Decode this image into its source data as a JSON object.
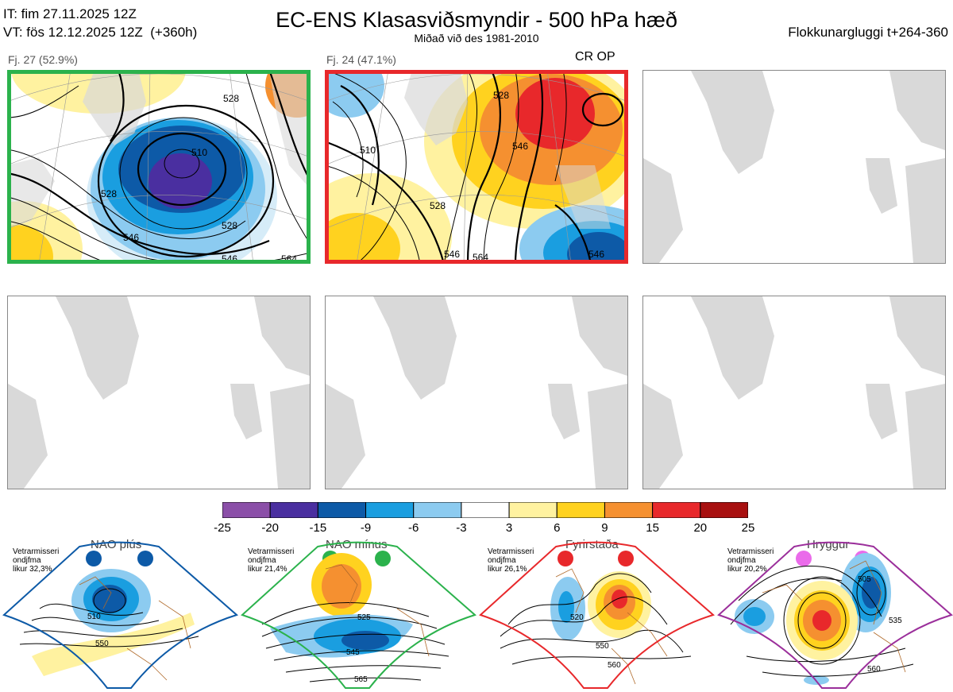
{
  "header": {
    "init_line": "IT: fim 27.11.2025 12Z",
    "valid_line": "VT: fös 12.12.2025 12Z  (+360h)",
    "title": "EC-ENS Klasasviðsmyndir - 500 hPa hæð",
    "subtitle": "Miðað við des 1981-2010",
    "window": "Flokkunargluggi t+264-360"
  },
  "panels": [
    {
      "label": "Fj. 27 (52.9%)",
      "border": "#2bb24c",
      "extra": ""
    },
    {
      "label": "Fj. 24 (47.1%)",
      "border": "#e8282b",
      "extra": "CR OP"
    },
    {
      "label": "",
      "border": "#888888",
      "extra": ""
    },
    {
      "label": "",
      "border": "#888888",
      "extra": ""
    },
    {
      "label": "",
      "border": "#888888",
      "extra": ""
    },
    {
      "label": "",
      "border": "#888888",
      "extra": ""
    }
  ],
  "colors": {
    "land": "#d9d9d9",
    "coast": "#8c6a4a",
    "contour": "#000000",
    "nao_plus": "#0d5aa7",
    "nao_minus": "#2bb24c",
    "blocking": "#e8282b",
    "ridge": "#9b2f9b"
  },
  "chart_data": [
    {
      "type": "colorbar",
      "title": "",
      "ticks": [
        "-25",
        "-20",
        "-15",
        "-9",
        "-6",
        "-3",
        "3",
        "6",
        "9",
        "15",
        "20",
        "25"
      ],
      "colors": [
        "#8b4fa8",
        "#4a2fa0",
        "#0d5aa7",
        "#1a9ee0",
        "#8ccbf0",
        "#ffffff",
        "#fff2a0",
        "#ffd21f",
        "#f59030",
        "#e8282b",
        "#a81010"
      ]
    },
    {
      "type": "contour-map",
      "title": "Fj. 27 (52.9%)",
      "contour_labels": [
        "528",
        "510",
        "528",
        "546",
        "528",
        "546",
        "564"
      ],
      "anomaly": "negative"
    },
    {
      "type": "contour-map",
      "title": "Fj. 24 (47.1%)",
      "contour_labels": [
        "528",
        "510",
        "528",
        "546",
        "546",
        "564",
        "546"
      ],
      "anomaly": "positive"
    },
    {
      "type": "regime-maps",
      "regimes": [
        {
          "name": "NAO plús",
          "note": "Vetrarmisseri\nondjfma\nlikur 32,3%",
          "labels": [
            "510",
            "550"
          ],
          "color": "#0d5aa7",
          "dot": "#0d5aa7"
        },
        {
          "name": "NAO mínus",
          "note": "Vetrarmisseri\nondjfma\nlikur 21,4%",
          "labels": [
            "525",
            "545",
            "565"
          ],
          "color": "#2bb24c",
          "dot": "#2bb24c"
        },
        {
          "name": "Fyrirstaða",
          "note": "Vetrarmisseri\nondjfma\nlikur 26,1%",
          "labels": [
            "520",
            "550",
            "560"
          ],
          "color": "#e8282b",
          "dot": "#e8282b"
        },
        {
          "name": "Hryggur",
          "note": "Vetrarmisseri\nondjfma\nlikur 20,2%",
          "labels": [
            "505",
            "535",
            "560"
          ],
          "color": "#9b2f9b",
          "dot": "#ea6bea"
        }
      ]
    }
  ]
}
